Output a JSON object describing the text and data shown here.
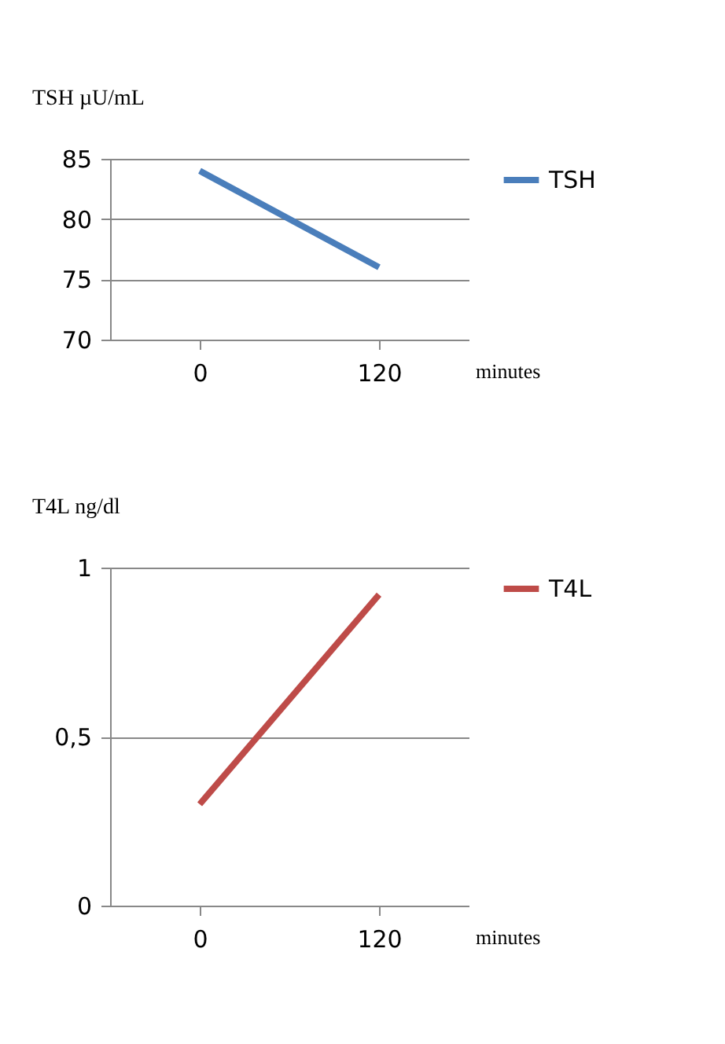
{
  "chart_data": [
    {
      "type": "line",
      "ylabel": "TSH µU/mL",
      "xlabel": "minutes",
      "categories": [
        "0",
        "120"
      ],
      "series": [
        {
          "name": "TSH",
          "color": "#4a7ebb",
          "values": [
            84,
            76
          ]
        }
      ],
      "ylim": [
        70,
        85
      ],
      "yticks": [
        70,
        75,
        80,
        85
      ],
      "grid": "y",
      "legend": "right"
    },
    {
      "type": "line",
      "ylabel": "T4L ng/dl",
      "xlabel": "minutes",
      "categories": [
        "0",
        "120"
      ],
      "series": [
        {
          "name": "T4L",
          "color": "#be4b48",
          "values": [
            0.3,
            0.92
          ]
        }
      ],
      "ylim": [
        0,
        1
      ],
      "yticks": [
        0,
        {
          "value": 0.5,
          "label": "0,5"
        },
        1
      ],
      "grid": "y",
      "legend": "right"
    }
  ]
}
